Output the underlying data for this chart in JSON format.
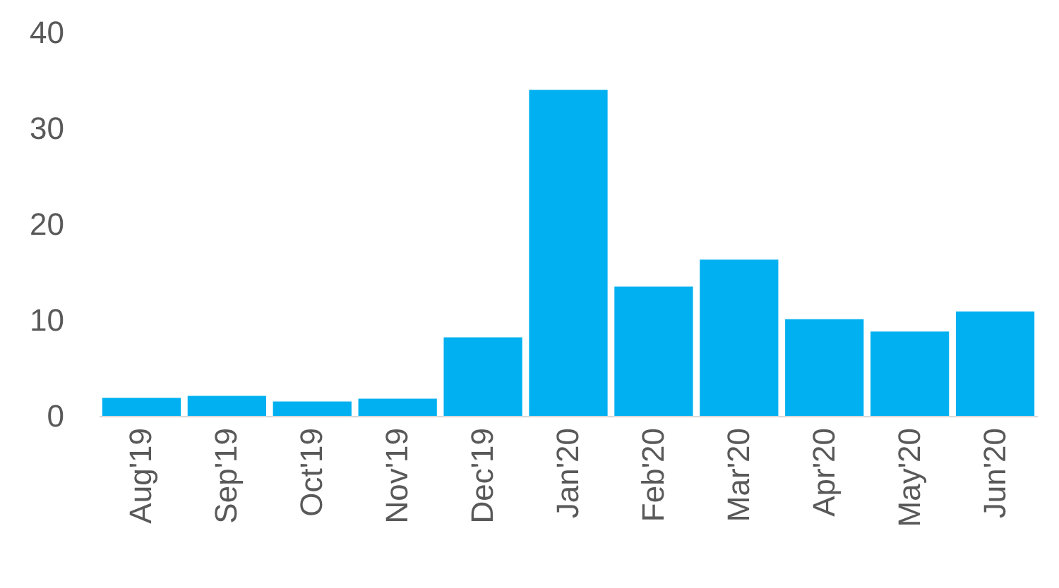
{
  "chart_data": {
    "type": "bar",
    "categories": [
      "Aug'19",
      "Sep'19",
      "Oct'19",
      "Nov'19",
      "Dec'19",
      "Jan'20",
      "Feb'20",
      "Mar'20",
      "Apr'20",
      "May'20",
      "Jun'20"
    ],
    "values": [
      1.9,
      2.1,
      1.5,
      1.8,
      8.2,
      34.0,
      13.5,
      16.3,
      10.1,
      8.8,
      10.9
    ],
    "color": "#00b0f0",
    "ylim": [
      0,
      40
    ],
    "yticks": [
      0,
      10,
      20,
      30,
      40
    ],
    "grid": false
  }
}
